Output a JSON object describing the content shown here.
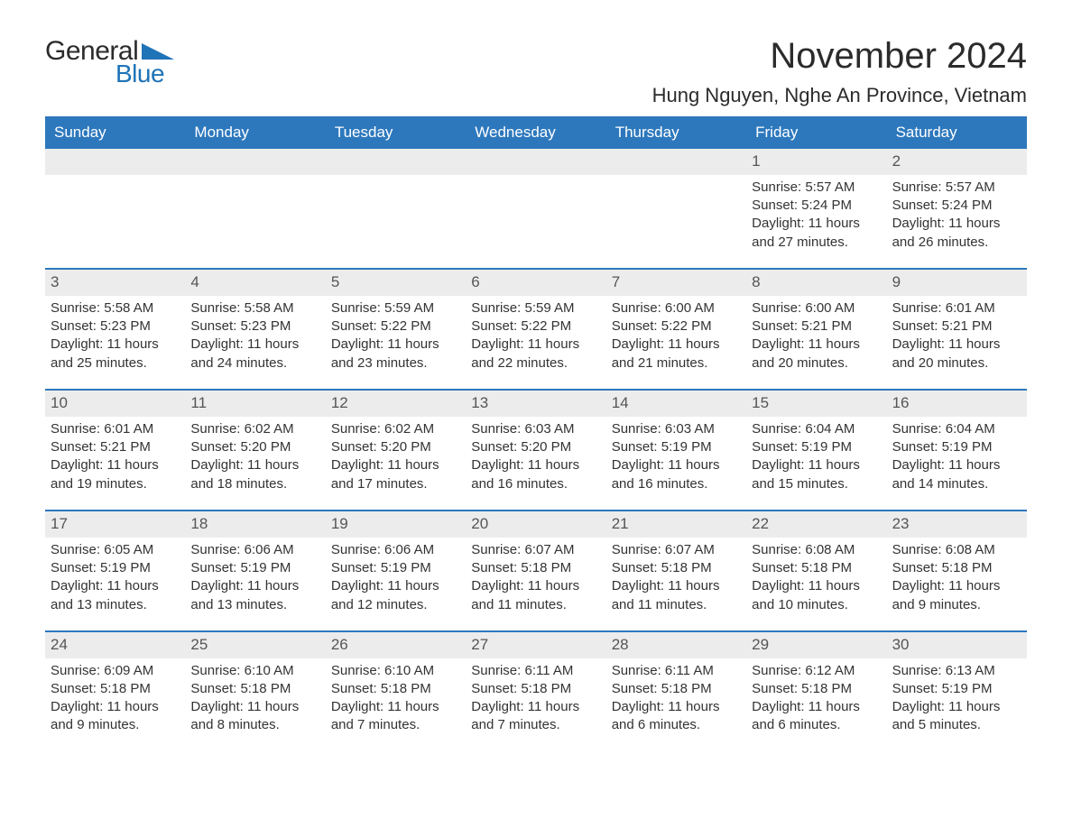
{
  "logo": {
    "text_general": "General",
    "text_blue": "Blue",
    "shape_color": "#1f73b7"
  },
  "title": "November 2024",
  "location": "Hung Nguyen, Nghe An Province, Vietnam",
  "colors": {
    "header_bg": "#2d78bd",
    "header_text": "#ffffff",
    "date_bg": "#ececec",
    "date_text": "#555555",
    "body_text": "#333333",
    "rule": "#2d78bd",
    "logo_blue": "#1f73b7",
    "logo_dark": "#2b2b2b"
  },
  "day_names": [
    "Sunday",
    "Monday",
    "Tuesday",
    "Wednesday",
    "Thursday",
    "Friday",
    "Saturday"
  ],
  "weeks": [
    [
      {
        "empty": true
      },
      {
        "empty": true
      },
      {
        "empty": true
      },
      {
        "empty": true
      },
      {
        "empty": true
      },
      {
        "date": "1",
        "sunrise": "Sunrise: 5:57 AM",
        "sunset": "Sunset: 5:24 PM",
        "daylight1": "Daylight: 11 hours",
        "daylight2": "and 27 minutes."
      },
      {
        "date": "2",
        "sunrise": "Sunrise: 5:57 AM",
        "sunset": "Sunset: 5:24 PM",
        "daylight1": "Daylight: 11 hours",
        "daylight2": "and 26 minutes."
      }
    ],
    [
      {
        "date": "3",
        "sunrise": "Sunrise: 5:58 AM",
        "sunset": "Sunset: 5:23 PM",
        "daylight1": "Daylight: 11 hours",
        "daylight2": "and 25 minutes."
      },
      {
        "date": "4",
        "sunrise": "Sunrise: 5:58 AM",
        "sunset": "Sunset: 5:23 PM",
        "daylight1": "Daylight: 11 hours",
        "daylight2": "and 24 minutes."
      },
      {
        "date": "5",
        "sunrise": "Sunrise: 5:59 AM",
        "sunset": "Sunset: 5:22 PM",
        "daylight1": "Daylight: 11 hours",
        "daylight2": "and 23 minutes."
      },
      {
        "date": "6",
        "sunrise": "Sunrise: 5:59 AM",
        "sunset": "Sunset: 5:22 PM",
        "daylight1": "Daylight: 11 hours",
        "daylight2": "and 22 minutes."
      },
      {
        "date": "7",
        "sunrise": "Sunrise: 6:00 AM",
        "sunset": "Sunset: 5:22 PM",
        "daylight1": "Daylight: 11 hours",
        "daylight2": "and 21 minutes."
      },
      {
        "date": "8",
        "sunrise": "Sunrise: 6:00 AM",
        "sunset": "Sunset: 5:21 PM",
        "daylight1": "Daylight: 11 hours",
        "daylight2": "and 20 minutes."
      },
      {
        "date": "9",
        "sunrise": "Sunrise: 6:01 AM",
        "sunset": "Sunset: 5:21 PM",
        "daylight1": "Daylight: 11 hours",
        "daylight2": "and 20 minutes."
      }
    ],
    [
      {
        "date": "10",
        "sunrise": "Sunrise: 6:01 AM",
        "sunset": "Sunset: 5:21 PM",
        "daylight1": "Daylight: 11 hours",
        "daylight2": "and 19 minutes."
      },
      {
        "date": "11",
        "sunrise": "Sunrise: 6:02 AM",
        "sunset": "Sunset: 5:20 PM",
        "daylight1": "Daylight: 11 hours",
        "daylight2": "and 18 minutes."
      },
      {
        "date": "12",
        "sunrise": "Sunrise: 6:02 AM",
        "sunset": "Sunset: 5:20 PM",
        "daylight1": "Daylight: 11 hours",
        "daylight2": "and 17 minutes."
      },
      {
        "date": "13",
        "sunrise": "Sunrise: 6:03 AM",
        "sunset": "Sunset: 5:20 PM",
        "daylight1": "Daylight: 11 hours",
        "daylight2": "and 16 minutes."
      },
      {
        "date": "14",
        "sunrise": "Sunrise: 6:03 AM",
        "sunset": "Sunset: 5:19 PM",
        "daylight1": "Daylight: 11 hours",
        "daylight2": "and 16 minutes."
      },
      {
        "date": "15",
        "sunrise": "Sunrise: 6:04 AM",
        "sunset": "Sunset: 5:19 PM",
        "daylight1": "Daylight: 11 hours",
        "daylight2": "and 15 minutes."
      },
      {
        "date": "16",
        "sunrise": "Sunrise: 6:04 AM",
        "sunset": "Sunset: 5:19 PM",
        "daylight1": "Daylight: 11 hours",
        "daylight2": "and 14 minutes."
      }
    ],
    [
      {
        "date": "17",
        "sunrise": "Sunrise: 6:05 AM",
        "sunset": "Sunset: 5:19 PM",
        "daylight1": "Daylight: 11 hours",
        "daylight2": "and 13 minutes."
      },
      {
        "date": "18",
        "sunrise": "Sunrise: 6:06 AM",
        "sunset": "Sunset: 5:19 PM",
        "daylight1": "Daylight: 11 hours",
        "daylight2": "and 13 minutes."
      },
      {
        "date": "19",
        "sunrise": "Sunrise: 6:06 AM",
        "sunset": "Sunset: 5:19 PM",
        "daylight1": "Daylight: 11 hours",
        "daylight2": "and 12 minutes."
      },
      {
        "date": "20",
        "sunrise": "Sunrise: 6:07 AM",
        "sunset": "Sunset: 5:18 PM",
        "daylight1": "Daylight: 11 hours",
        "daylight2": "and 11 minutes."
      },
      {
        "date": "21",
        "sunrise": "Sunrise: 6:07 AM",
        "sunset": "Sunset: 5:18 PM",
        "daylight1": "Daylight: 11 hours",
        "daylight2": "and 11 minutes."
      },
      {
        "date": "22",
        "sunrise": "Sunrise: 6:08 AM",
        "sunset": "Sunset: 5:18 PM",
        "daylight1": "Daylight: 11 hours",
        "daylight2": "and 10 minutes."
      },
      {
        "date": "23",
        "sunrise": "Sunrise: 6:08 AM",
        "sunset": "Sunset: 5:18 PM",
        "daylight1": "Daylight: 11 hours",
        "daylight2": "and 9 minutes."
      }
    ],
    [
      {
        "date": "24",
        "sunrise": "Sunrise: 6:09 AM",
        "sunset": "Sunset: 5:18 PM",
        "daylight1": "Daylight: 11 hours",
        "daylight2": "and 9 minutes."
      },
      {
        "date": "25",
        "sunrise": "Sunrise: 6:10 AM",
        "sunset": "Sunset: 5:18 PM",
        "daylight1": "Daylight: 11 hours",
        "daylight2": "and 8 minutes."
      },
      {
        "date": "26",
        "sunrise": "Sunrise: 6:10 AM",
        "sunset": "Sunset: 5:18 PM",
        "daylight1": "Daylight: 11 hours",
        "daylight2": "and 7 minutes."
      },
      {
        "date": "27",
        "sunrise": "Sunrise: 6:11 AM",
        "sunset": "Sunset: 5:18 PM",
        "daylight1": "Daylight: 11 hours",
        "daylight2": "and 7 minutes."
      },
      {
        "date": "28",
        "sunrise": "Sunrise: 6:11 AM",
        "sunset": "Sunset: 5:18 PM",
        "daylight1": "Daylight: 11 hours",
        "daylight2": "and 6 minutes."
      },
      {
        "date": "29",
        "sunrise": "Sunrise: 6:12 AM",
        "sunset": "Sunset: 5:18 PM",
        "daylight1": "Daylight: 11 hours",
        "daylight2": "and 6 minutes."
      },
      {
        "date": "30",
        "sunrise": "Sunrise: 6:13 AM",
        "sunset": "Sunset: 5:19 PM",
        "daylight1": "Daylight: 11 hours",
        "daylight2": "and 5 minutes."
      }
    ]
  ]
}
